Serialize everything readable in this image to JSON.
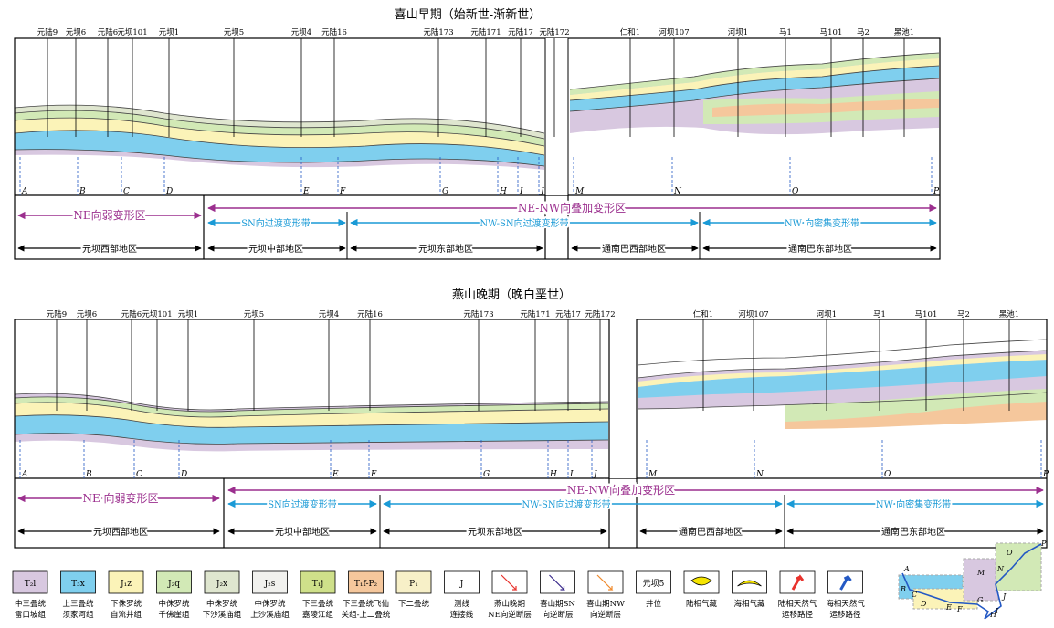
{
  "colors": {
    "purple_zone": "#9b2f8e",
    "blue_zone": "#1a9ad6",
    "black": "#000000",
    "l_purple": "#d8c8e0",
    "l_blue": "#7fcfee",
    "l_yellow": "#fbf3b8",
    "l_green": "#d2e9b6",
    "l_gray_green": "#dfe6cf",
    "l_olive": "#cfe08a",
    "l_orange": "#f5c79c",
    "l_cream": "#f7f0c8",
    "gas_land": "#f5e400",
    "red_arrow": "#e8322c",
    "blue_arrow": "#2459c4"
  },
  "upper": {
    "title": "喜山早期（始新世-渐新世）",
    "wells": [
      "元陆9",
      "元坝6",
      "元陆6",
      "元坝101",
      "元坝1",
      "元坝5",
      "元坝4",
      "元陆16",
      "元陆173",
      "元陆171",
      "元陆17",
      "元陆172",
      "仁和1",
      "河坝107",
      "河坝1",
      "马1",
      "马101",
      "马2",
      "黑池1"
    ],
    "points": [
      "A",
      "B",
      "C",
      "D",
      "E",
      "F",
      "G",
      "H",
      "I",
      "J",
      "M",
      "N",
      "O",
      "P"
    ],
    "zone_ne": "NE向弱变形区",
    "zone_overlay": "NE-NW向叠加变形区",
    "belt_sn": "SN向过渡变形带",
    "belt_nwsn": "NW-SN向过渡变形带",
    "belt_nw": "NW 向密集变形带",
    "regions": [
      "元坝西部地区",
      "元坝中部地区",
      "元坝东部地区",
      "通南巴西部地区",
      "通南巴东部地区"
    ]
  },
  "lower": {
    "title": "燕山晚期（晚白垩世）",
    "wells": [
      "元陆9",
      "元坝6",
      "元陆6",
      "元坝101",
      "元坝1",
      "元坝5",
      "元坝4",
      "元陆16",
      "元陆173",
      "元陆171",
      "元陆17",
      "元陆172",
      "仁和1",
      "河坝107",
      "河坝1",
      "马1",
      "马101",
      "马2",
      "黑池1"
    ],
    "points": [
      "A",
      "B",
      "C",
      "D",
      "E",
      "F",
      "G",
      "H",
      "I",
      "J",
      "M",
      "N",
      "O",
      "P"
    ],
    "zone_ne": "NE 向弱变形区",
    "zone_overlay": "NE-NW向叠加变形区",
    "belt_sn": "SN向过渡变形带",
    "belt_nwsn": "NW-SN向过渡变形带",
    "belt_nw": "NW 向密集变形带",
    "regions": [
      "元坝西部地区",
      "元坝中部地区",
      "元坝东部地区",
      "通南巴西部地区",
      "通南巴东部地区"
    ]
  },
  "legend": [
    {
      "code": "T₂l",
      "l1": "中三叠统",
      "l2": "雷口坡组"
    },
    {
      "code": "T₃x",
      "l1": "上三叠统",
      "l2": "须家河组"
    },
    {
      "code": "J₁z",
      "l1": "下侏罗统",
      "l2": "自流井组"
    },
    {
      "code": "J₂q",
      "l1": "中侏罗统",
      "l2": "千佛崖组"
    },
    {
      "code": "J₂x",
      "l1": "中侏罗统",
      "l2": "下沙溪庙组"
    },
    {
      "code": "J₂s",
      "l1": "中侏罗统",
      "l2": "上沙溪庙组"
    },
    {
      "code": "T₁j",
      "l1": "下三叠统",
      "l2": "嘉陵江组"
    },
    {
      "code": "T₁f-P₂",
      "l1": "下三叠统飞仙",
      "l2": "关组-上二叠统"
    },
    {
      "code": "P₁",
      "l1": "下二叠统",
      "l2": ""
    },
    {
      "code": "J",
      "l1": "测线",
      "l2": "连接线"
    },
    {
      "code": "",
      "l1": "燕山晚期",
      "l2": "NE向逆断层"
    },
    {
      "code": "",
      "l1": "喜山期SN",
      "l2": "向逆断层"
    },
    {
      "code": "",
      "l1": "喜山期NW",
      "l2": "向逆断层"
    },
    {
      "code": "元坝5",
      "l1": "井位",
      "l2": ""
    },
    {
      "code": "",
      "l1": "陆相气藏",
      "l2": ""
    },
    {
      "code": "",
      "l1": "海相气藏",
      "l2": ""
    },
    {
      "code": "",
      "l1": "陆相天然气",
      "l2": "运移路径"
    },
    {
      "code": "",
      "l1": "海相天然气",
      "l2": "运移路径"
    }
  ],
  "map_letters": [
    "A",
    "B",
    "C",
    "D",
    "E",
    "F",
    "G",
    "H",
    "I",
    "J",
    "M",
    "N",
    "O",
    "P"
  ]
}
